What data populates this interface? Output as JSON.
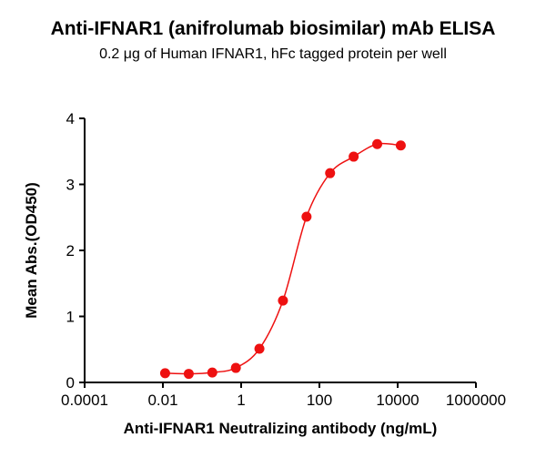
{
  "chart_data": {
    "type": "scatter",
    "title": "Anti-IFNAR1 (anifrolumab biosimilar) mAb ELISA",
    "subtitle": "0.2 μg of Human IFNAR1, hFc tagged protein per well",
    "x_label": "Anti-IFNAR1 Neutralizing antibody (ng/mL)",
    "y_label": "Mean Abs.(OD450)",
    "x_scale": "log",
    "x": [
      0.0114,
      0.0458,
      0.183,
      0.732,
      2.93,
      11.7,
      46.9,
      187.5,
      750,
      3000,
      12000
    ],
    "series": [
      {
        "color": "#ee1111",
        "values": [
          0.14,
          0.13,
          0.15,
          0.22,
          0.51,
          1.24,
          2.51,
          3.17,
          3.42,
          3.61,
          3.59
        ]
      }
    ],
    "xlim": [
      0.0001,
      1000000
    ],
    "xticks": [
      0.0001,
      0.01,
      1,
      100,
      10000,
      1000000
    ],
    "ylim": [
      0,
      4
    ],
    "yticks": [
      0,
      1,
      2,
      3,
      4
    ]
  }
}
